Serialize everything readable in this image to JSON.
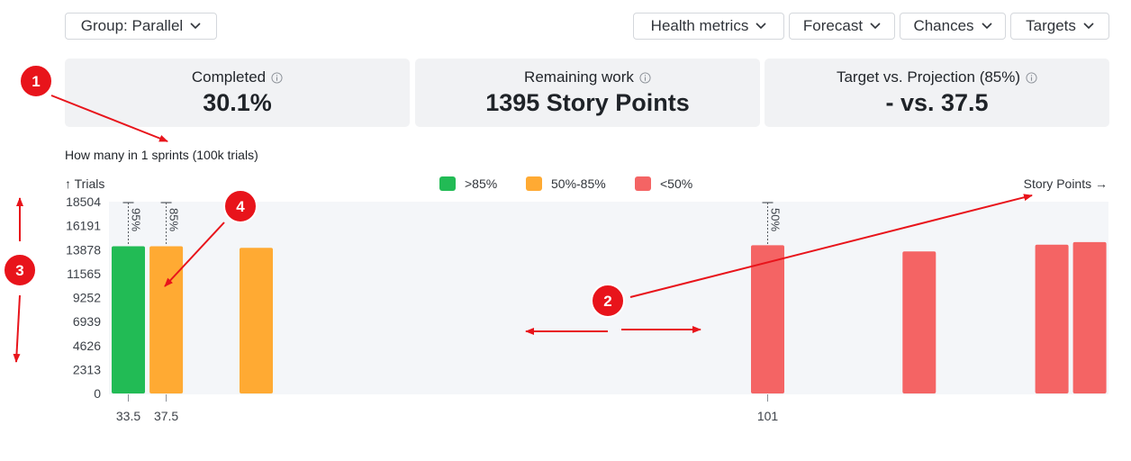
{
  "toolbar": {
    "group_label": "Group: Parallel",
    "health_label": "Health metrics",
    "forecast_label": "Forecast",
    "chances_label": "Chances",
    "targets_label": "Targets"
  },
  "cards": {
    "completed": {
      "label": "Completed",
      "value": "30.1%"
    },
    "remaining": {
      "label": "Remaining work",
      "value": "1395 Story Points"
    },
    "target": {
      "label": "Target vs. Projection (85%)",
      "value": "- vs. 37.5"
    }
  },
  "chart_title": "How many in 1 sprints (100k trials)",
  "legend": {
    "high": {
      "label": ">85%",
      "color": "#22bb55"
    },
    "mid": {
      "label": "50%-85%",
      "color": "#ffaa33"
    },
    "low": {
      "label": "<50%",
      "color": "#f46464"
    }
  },
  "chart_data": {
    "type": "bar",
    "ylabel": "↑ Trials",
    "xlabel": "Story Points →",
    "ylim": [
      0,
      18504
    ],
    "y_ticks": [
      "18504",
      "16191",
      "13878",
      "11565",
      "9252",
      "6939",
      "4626",
      "2313",
      "0"
    ],
    "x_ticks": [
      "33.5",
      "37.5",
      "101"
    ],
    "bars": [
      {
        "x": 33.5,
        "value": 14200,
        "band": "high"
      },
      {
        "x": 37.5,
        "value": 14200,
        "band": "mid"
      },
      {
        "x": 47,
        "value": 14050,
        "band": "mid"
      },
      {
        "x": 101,
        "value": 14300,
        "band": "low"
      },
      {
        "x": 117,
        "value": 13700,
        "band": "low"
      },
      {
        "x": 131,
        "value": 14350,
        "band": "low"
      },
      {
        "x": 135,
        "value": 14600,
        "band": "low"
      }
    ],
    "markers": [
      {
        "x": 33.5,
        "label": "95%"
      },
      {
        "x": 37.5,
        "label": "85%"
      },
      {
        "x": 101,
        "label": "50%"
      }
    ]
  },
  "annotations": [
    "1",
    "2",
    "3",
    "4"
  ]
}
